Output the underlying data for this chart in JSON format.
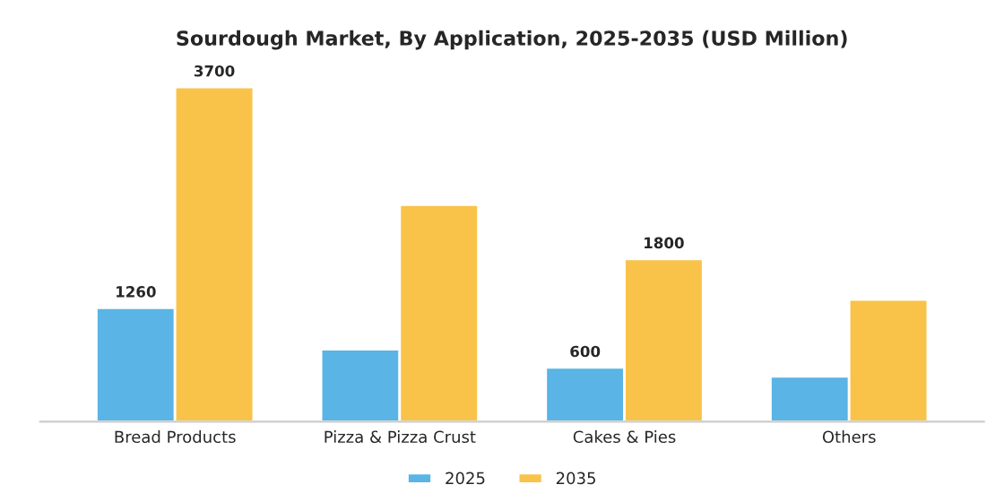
{
  "chart_data": {
    "type": "bar",
    "title": "Sourdough Market, By Application, 2025-2035 (USD Million)",
    "categories": [
      "Bread Products",
      "Pizza & Pizza Crust",
      "Cakes & Pies",
      "Others"
    ],
    "series": [
      {
        "name": "2025",
        "color": "#5ab4e5",
        "values": [
          1260,
          800,
          600,
          500
        ],
        "value_labels": [
          "1260",
          null,
          "600",
          null
        ]
      },
      {
        "name": "2035",
        "color": "#f9c34a",
        "values": [
          3700,
          2400,
          1800,
          1350
        ],
        "value_labels": [
          "3700",
          null,
          "1800",
          null
        ]
      }
    ],
    "tick_labels": "x",
    "grid": false,
    "legend": "bottom"
  }
}
